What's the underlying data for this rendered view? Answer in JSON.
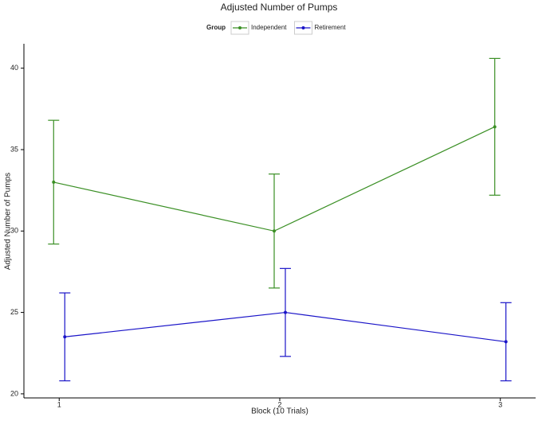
{
  "chart_data": {
    "type": "line",
    "title": "Adjusted Number of Pumps",
    "x_label": "Block (10 Trials)",
    "y_label": "Adjusted Number of Pumps",
    "legend_title": "Group",
    "x": [
      1,
      2,
      3
    ],
    "series": [
      {
        "name": "Independent",
        "color": "#3a8f24",
        "values": [
          33.0,
          30.0,
          36.4
        ],
        "errors": [
          3.8,
          3.5,
          4.2
        ]
      },
      {
        "name": "Retirement",
        "color": "#1a14c8",
        "values": [
          23.5,
          25.0,
          23.2
        ],
        "errors": [
          2.7,
          2.7,
          2.4
        ]
      }
    ],
    "xlim": [
      0.84,
      3.16
    ],
    "xticks": [
      1,
      2,
      3
    ],
    "ylim": [
      19.75,
      41.5
    ],
    "yticks": [
      20,
      25,
      30,
      35,
      40
    ],
    "grid": false,
    "legend_position": "top"
  }
}
